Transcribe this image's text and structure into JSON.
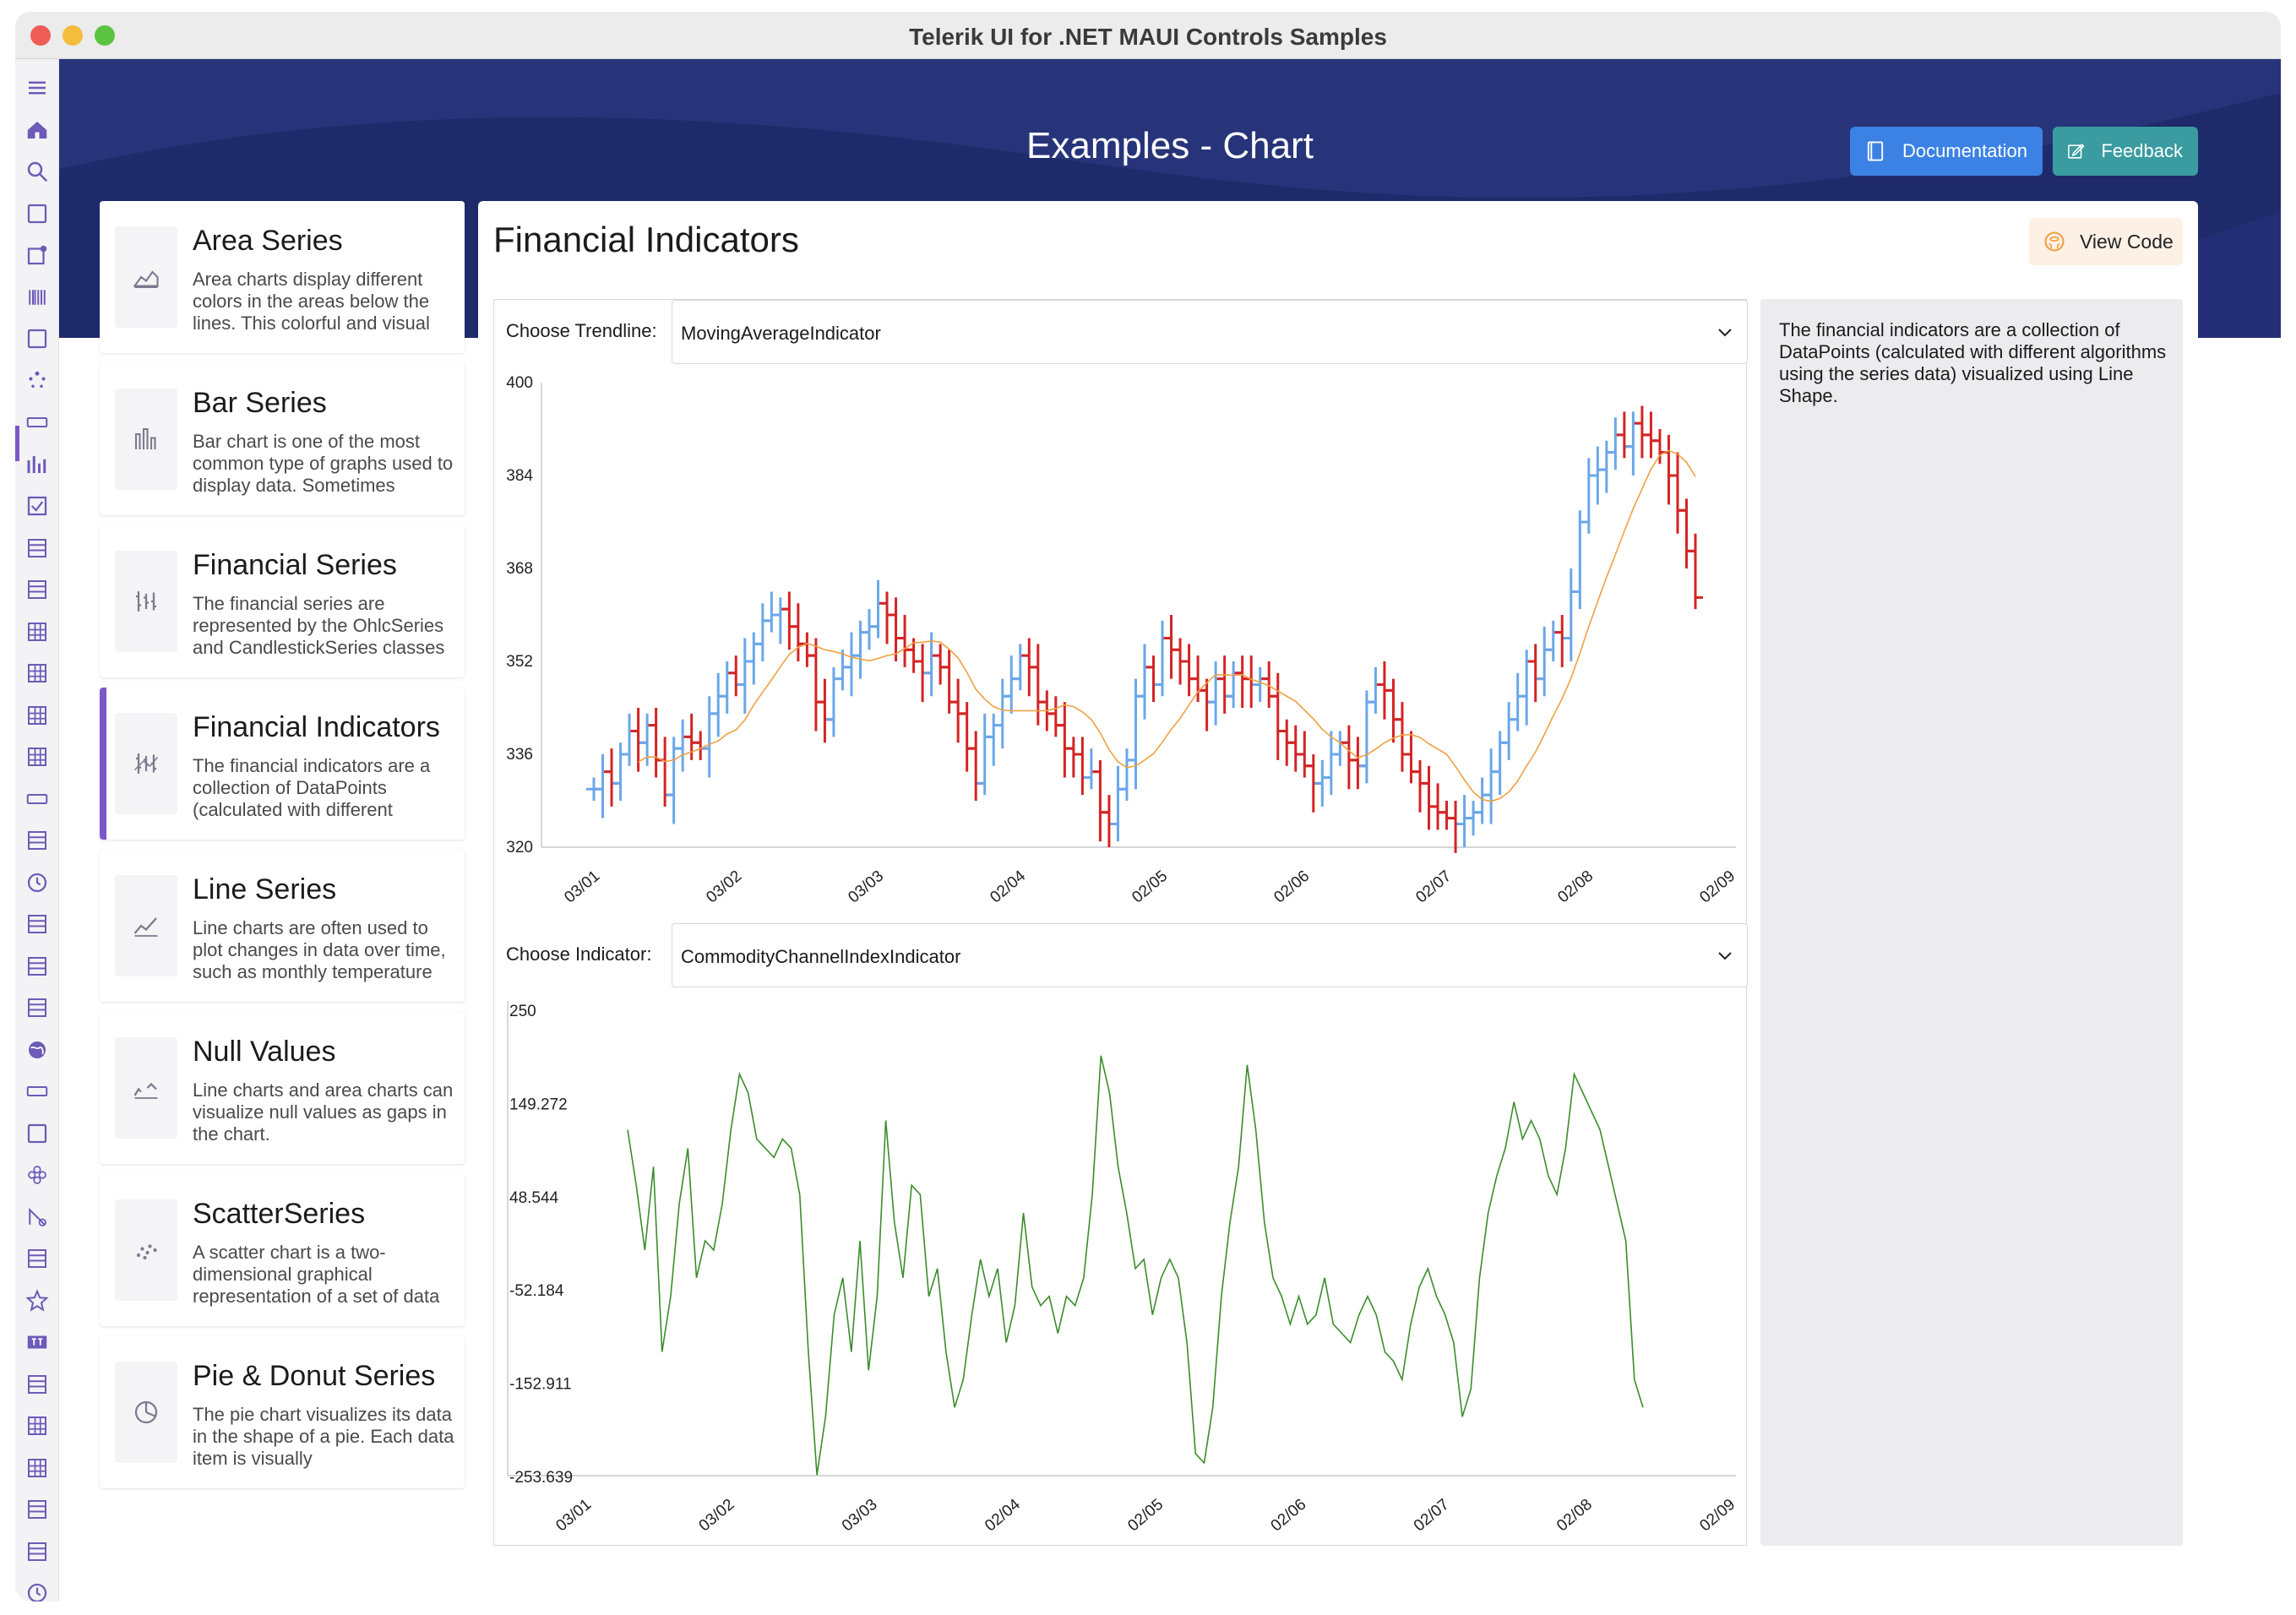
{
  "window": {
    "title": "Telerik UI for .NET MAUI Controls Samples"
  },
  "header": {
    "title": "Examples - Chart",
    "documentation_label": "Documentation",
    "feedback_label": "Feedback",
    "documentation_color": "#3b82e4",
    "feedback_color": "#3a9ca0",
    "band_color": "#1f2a6b"
  },
  "rail": {
    "icons": [
      "hamburger-icon",
      "home-icon",
      "search-icon",
      "autocomplete-icon",
      "badge-view-icon",
      "barcode-icon",
      "border-icon",
      "busy-indicator-icon",
      "button-icon",
      "chart-icon",
      "checkbox-icon",
      "collection-view-icon",
      "combobox-icon",
      "datagrid-icon",
      "date-picker-icon",
      "datetime-picker-icon",
      "dock-layout-icon",
      "entry-icon",
      "expander-icon",
      "gauge-icon",
      "list-picker-icon",
      "listview-icon",
      "masked-entry-icon",
      "map-icon",
      "numeric-input-icon",
      "path-icon",
      "pdf-viewer-icon",
      "popup-icon",
      "rating-icon",
      "rich-text-icon",
      "scheduler-icon",
      "slideview-icon",
      "spreadsheet-icon",
      "tabview-icon",
      "template-icon",
      "time-picker-icon"
    ],
    "active_index": 9
  },
  "sidebar": {
    "items": [
      {
        "title": "Area Series",
        "desc": "Area charts display different colors in the areas below the lines. This colorful and visual",
        "icon": "area-chart-icon"
      },
      {
        "title": "Bar Series",
        "desc": "Bar chart is one of the most common type of graphs used to display data. Sometimes",
        "icon": "bar-chart-icon"
      },
      {
        "title": "Financial Series",
        "desc": "The financial series are represented by the OhlcSeries and CandlestickSeries classes",
        "icon": "ohlc-icon"
      },
      {
        "title": "Financial Indicators",
        "desc": "The financial indicators are a collection of DataPoints (calculated with different",
        "icon": "indicators-icon"
      },
      {
        "title": "Line Series",
        "desc": "Line charts are often used to plot changes in data over time, such as monthly temperature",
        "icon": "line-chart-icon"
      },
      {
        "title": "Null Values",
        "desc": "Line charts and area charts can visualize null values as gaps in the chart.",
        "icon": "null-values-icon"
      },
      {
        "title": "ScatterSeries",
        "desc": "A scatter chart is a two-dimensional graphical representation of a set of data",
        "icon": "scatter-icon"
      },
      {
        "title": "Pie & Donut Series",
        "desc": "The pie chart visualizes its data in the shape of a pie. Each data item is visually",
        "icon": "pie-chart-icon"
      }
    ],
    "active_index": 3,
    "accent": "#7b57c8"
  },
  "main": {
    "title": "Financial Indicators",
    "view_code_label": "View Code",
    "trendline_label": "Choose Trendline:",
    "trendline_value": "MovingAverageIndicator",
    "indicator_label": "Choose Indicator:",
    "indicator_value": "CommodityChannelIndexIndicator",
    "info": "The financial indicators are a collection of DataPoints (calculated with different algorithms using the series data) visualized using Line Shape."
  },
  "chart_data": [
    {
      "type": "ohlc",
      "ylim": [
        320,
        400
      ],
      "yticks": [
        "320",
        "336",
        "352",
        "368",
        "384",
        "400"
      ],
      "xticks": [
        "03/01",
        "03/02",
        "03/03",
        "02/04",
        "02/05",
        "02/06",
        "02/07",
        "02/08",
        "02/09"
      ],
      "up_color": "#6aa7ea",
      "down_color": "#d42424",
      "trend_color": "#f0a040",
      "grid": false,
      "close": [
        330,
        333,
        331,
        336,
        340,
        338,
        341,
        335,
        329,
        337,
        339,
        338,
        337,
        343,
        346,
        350,
        348,
        352,
        355,
        359,
        360,
        361,
        358,
        355,
        353,
        345,
        342,
        349,
        351,
        353,
        357,
        358,
        362,
        360,
        356,
        354,
        352,
        350,
        353,
        351,
        345,
        343,
        337,
        331,
        339,
        341,
        346,
        349,
        353,
        351,
        345,
        343,
        341,
        337,
        336,
        332,
        333,
        326,
        324,
        330,
        335,
        346,
        351,
        348,
        356,
        354,
        352,
        349,
        347,
        345,
        349,
        346,
        350,
        349,
        348,
        349,
        346,
        340,
        338,
        336,
        334,
        331,
        332,
        336,
        338,
        335,
        334,
        345,
        348,
        347,
        342,
        336,
        333,
        331,
        327,
        326,
        325,
        324,
        325,
        326,
        329,
        333,
        338,
        342,
        346,
        352,
        349,
        354,
        357,
        356,
        364,
        376,
        384,
        385,
        388,
        391,
        389,
        393,
        391,
        390,
        388,
        384,
        378,
        371,
        363
      ]
    },
    {
      "type": "line",
      "ylim": [
        -253.639,
        250
      ],
      "yticks": [
        "250",
        "149.272",
        "48.544",
        "-52.184",
        "-152.911",
        "-253.639"
      ],
      "xticks": [
        "03/01",
        "03/02",
        "03/03",
        "02/04",
        "02/05",
        "02/06",
        "02/07",
        "02/08",
        "02/09"
      ],
      "color": "#3c8c2c",
      "values": [
        120,
        60,
        -10,
        80,
        -120,
        -60,
        40,
        100,
        -40,
        0,
        -10,
        40,
        120,
        180,
        160,
        110,
        100,
        90,
        110,
        100,
        50,
        -120,
        -253,
        -190,
        -80,
        -40,
        -120,
        0,
        -140,
        -60,
        130,
        20,
        -40,
        60,
        50,
        -60,
        -30,
        -120,
        -180,
        -150,
        -80,
        -20,
        -60,
        -30,
        -110,
        -70,
        30,
        -50,
        -70,
        -60,
        -100,
        -60,
        -70,
        -40,
        50,
        200,
        160,
        80,
        30,
        -30,
        -20,
        -80,
        -40,
        -20,
        -40,
        -110,
        -230,
        -240,
        -180,
        -60,
        20,
        80,
        190,
        120,
        20,
        -40,
        -60,
        -90,
        -60,
        -90,
        -80,
        -40,
        -90,
        -100,
        -110,
        -80,
        -60,
        -80,
        -120,
        -130,
        -150,
        -90,
        -50,
        -30,
        -60,
        -80,
        -110,
        -190,
        -160,
        -40,
        30,
        70,
        100,
        150,
        110,
        130,
        110,
        70,
        50,
        100,
        180,
        160,
        140,
        120,
        80,
        40,
        0,
        -150,
        -180
      ]
    }
  ]
}
